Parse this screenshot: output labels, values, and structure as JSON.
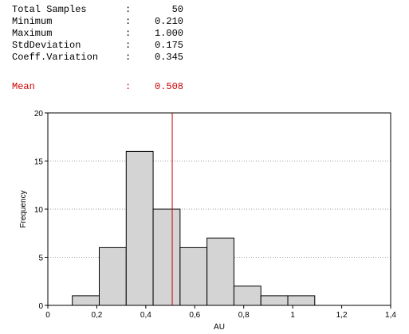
{
  "stats": [
    {
      "label": "Total Samples",
      "value": "50"
    },
    {
      "label": "Minimum",
      "value": "0.210"
    },
    {
      "label": "Maximum",
      "value": "1.000"
    },
    {
      "label": "StdDeviation",
      "value": "0.175"
    },
    {
      "label": "Coeff.Variation",
      "value": "0.345"
    }
  ],
  "separator": ":",
  "mean": {
    "label": "Mean",
    "value": 0.508
  },
  "chart_data": {
    "type": "histogram",
    "bins": [
      0.1,
      0.21,
      0.32,
      0.43,
      0.54,
      0.65,
      0.76,
      0.87,
      0.98,
      1.09
    ],
    "values": [
      1,
      6,
      16,
      10,
      6,
      7,
      2,
      1,
      1
    ],
    "color": "#d4d4d4",
    "mean_color": "#cc0000",
    "xlabel": "AU",
    "ylabel": "Frequency",
    "xlim": [
      0,
      1.4
    ],
    "ylim": [
      0,
      20
    ],
    "xticks": [
      0,
      {
        "value": 0.2,
        "label": "0,2"
      },
      {
        "value": 0.4,
        "label": "0,4"
      },
      {
        "value": 0.6,
        "label": "0,6"
      },
      {
        "value": 0.8,
        "label": "0,8"
      },
      1,
      {
        "value": 1.2,
        "label": "1,2"
      },
      {
        "value": 1.4,
        "label": "1,4"
      }
    ],
    "yticks": [
      0,
      5,
      10,
      15,
      20
    ],
    "grid": true
  }
}
